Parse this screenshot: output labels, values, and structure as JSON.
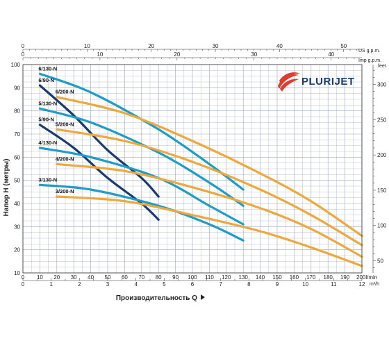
{
  "chart_data": {
    "type": "line",
    "brand": "PLURIJET",
    "ylabel": "Напор H (метры)",
    "xlabel": "Производительность Q",
    "x_unit": "l/min",
    "y_unit": "",
    "top1_unit": "US g.p.m.",
    "top2_unit": "Imp g.p.m.",
    "right_unit": "feet",
    "bottom2_unit": "m³/h",
    "xlim": [
      0,
      200
    ],
    "ylim": [
      10,
      100
    ],
    "x_ticks": [
      "0",
      "10",
      "20",
      "30",
      "40",
      "50",
      "60",
      "70",
      "80",
      "90",
      "100",
      "110",
      "120",
      "130",
      "140",
      "150",
      "160",
      "170",
      "180",
      "190",
      "200"
    ],
    "x_last_label": "200l/min",
    "y_ticks": [
      "10",
      "20",
      "30",
      "40",
      "50",
      "60",
      "70",
      "80",
      "90",
      "100"
    ],
    "us_gpm_ticks": [
      "0",
      "10",
      "20",
      "30",
      "40",
      "50"
    ],
    "imp_gpm_ticks": [
      "0",
      "10",
      "20",
      "30",
      "40"
    ],
    "m3h_ticks": [
      "0",
      "1",
      "2",
      "3",
      "4",
      "5",
      "6",
      "7",
      "8",
      "9",
      "10",
      "11",
      "12"
    ],
    "feet_ticks": [
      "50",
      "100",
      "150",
      "200",
      "250",
      "300"
    ],
    "colors": {
      "orange": "#f0a83c",
      "cyan": "#1d9dc8",
      "navy": "#1b3a72",
      "grid": "#9aa8c0",
      "logo_red": "#e53b2c"
    },
    "series": [
      {
        "name": "6/130-N",
        "color": "cyan",
        "x": [
          10,
          40,
          80,
          110,
          130
        ],
        "y": [
          96,
          88,
          72,
          57,
          46
        ]
      },
      {
        "name": "6/200-N",
        "color": "orange",
        "x": [
          20,
          60,
          100,
          140,
          170,
          200
        ],
        "y": [
          86,
          79,
          67,
          53,
          41,
          26
        ]
      },
      {
        "name": "6/90-N",
        "color": "navy",
        "x": [
          10,
          30,
          50,
          70,
          80
        ],
        "y": [
          91,
          78,
          63,
          51,
          43
        ]
      },
      {
        "name": "5/130-N",
        "color": "cyan",
        "x": [
          10,
          40,
          80,
          110,
          130
        ],
        "y": [
          81,
          75,
          62,
          49,
          39
        ]
      },
      {
        "name": "5/200-N",
        "color": "orange",
        "x": [
          20,
          60,
          100,
          140,
          170,
          200
        ],
        "y": [
          72,
          67,
          58,
          46,
          35,
          22
        ]
      },
      {
        "name": "5/90-N",
        "color": "navy",
        "x": [
          10,
          30,
          50,
          70,
          80
        ],
        "y": [
          74,
          64,
          51,
          40,
          33
        ]
      },
      {
        "name": "4/130-N",
        "color": "cyan",
        "x": [
          10,
          40,
          80,
          110,
          130
        ],
        "y": [
          64,
          60,
          51,
          39,
          31
        ]
      },
      {
        "name": "4/200-N",
        "color": "orange",
        "x": [
          20,
          60,
          100,
          140,
          170,
          200
        ],
        "y": [
          57,
          54,
          47,
          38,
          29,
          17
        ]
      },
      {
        "name": "3/130-N",
        "color": "cyan",
        "x": [
          10,
          40,
          80,
          110,
          130
        ],
        "y": [
          48,
          46,
          39,
          31,
          24
        ]
      },
      {
        "name": "3/200-N",
        "color": "orange",
        "x": [
          20,
          60,
          100,
          140,
          170,
          200
        ],
        "y": [
          43,
          41,
          35,
          28,
          21,
          13
        ]
      }
    ]
  }
}
